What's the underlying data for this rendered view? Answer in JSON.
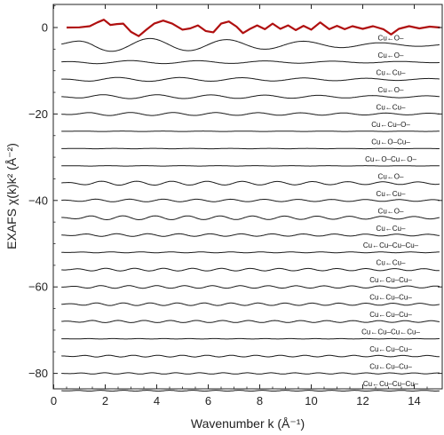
{
  "chart_data": {
    "type": "line",
    "xlabel": "Wavenumber k (Å⁻¹)",
    "ylabel": "EXAFS χ(k)k² (Å⁻²)",
    "xlim": [
      0,
      15
    ],
    "ylim": [
      -84,
      6
    ],
    "x_ticks": [
      0,
      2,
      4,
      6,
      8,
      10,
      12,
      14
    ],
    "y_ticks": [
      0,
      -20,
      -40,
      -60,
      -80
    ],
    "grid": false,
    "legend": "none",
    "colors": {
      "total": "#b01010",
      "paths": "#1a1a1a",
      "axes": "#222222"
    },
    "total_signal": {
      "offset": 0,
      "points": [
        [
          0.5,
          0
        ],
        [
          1.0,
          0.05
        ],
        [
          1.4,
          0.3
        ],
        [
          1.7,
          1.2
        ],
        [
          1.95,
          1.8
        ],
        [
          2.2,
          0.6
        ],
        [
          2.45,
          0.8
        ],
        [
          2.7,
          0.9
        ],
        [
          3.0,
          -1.0
        ],
        [
          3.3,
          -2.0
        ],
        [
          3.6,
          -0.5
        ],
        [
          3.9,
          0.9
        ],
        [
          4.25,
          1.6
        ],
        [
          4.6,
          0.9
        ],
        [
          5.0,
          -0.5
        ],
        [
          5.3,
          -0.2
        ],
        [
          5.6,
          0.5
        ],
        [
          5.9,
          -0.8
        ],
        [
          6.2,
          -1.1
        ],
        [
          6.5,
          0.9
        ],
        [
          6.8,
          1.4
        ],
        [
          7.1,
          0.2
        ],
        [
          7.35,
          -1.3
        ],
        [
          7.6,
          -0.4
        ],
        [
          7.9,
          0.5
        ],
        [
          8.2,
          -0.4
        ],
        [
          8.5,
          0.9
        ],
        [
          8.8,
          -0.3
        ],
        [
          9.1,
          0.5
        ],
        [
          9.4,
          -0.6
        ],
        [
          9.7,
          0.4
        ],
        [
          10.0,
          -0.5
        ],
        [
          10.35,
          1.2
        ],
        [
          10.7,
          -0.4
        ],
        [
          11.0,
          0.4
        ],
        [
          11.3,
          -0.4
        ],
        [
          11.6,
          0.3
        ],
        [
          12.0,
          -0.3
        ],
        [
          12.4,
          0.3
        ],
        [
          12.8,
          -0.4
        ],
        [
          13.1,
          -1.6
        ],
        [
          13.4,
          -0.3
        ],
        [
          13.8,
          0.3
        ],
        [
          14.2,
          -0.2
        ],
        [
          14.6,
          0.2
        ],
        [
          15.0,
          0
        ]
      ]
    },
    "paths": [
      {
        "label": "Cu←O–",
        "offset": -4,
        "amp": 1.5,
        "freq": 2.1,
        "decay": 0.1
      },
      {
        "label": "Cu←O–",
        "offset": -8,
        "amp": 0.35,
        "freq": 2.4,
        "decay": 0.06
      },
      {
        "label": "Cu←Cu–",
        "offset": -12,
        "amp": 0.45,
        "freq": 2.6,
        "decay": 0.05
      },
      {
        "label": "Cu←O–",
        "offset": -16,
        "amp": 0.45,
        "freq": 3.0,
        "decay": 0.05
      },
      {
        "label": "Cu←Cu–",
        "offset": -20,
        "amp": 0.35,
        "freq": 3.8,
        "decay": 0.04
      },
      {
        "label": "Cu←Cu–O–",
        "offset": -24,
        "amp": 0.05,
        "freq": 4.0,
        "decay": 0.02
      },
      {
        "label": "Cu←O–Cu–",
        "offset": -28,
        "amp": 0.05,
        "freq": 4.2,
        "decay": 0.02
      },
      {
        "label": "Cu←O–Cu←O–",
        "offset": -32,
        "amp": 0.05,
        "freq": 4.4,
        "decay": 0.02
      },
      {
        "label": "Cu←O–",
        "offset": -36,
        "amp": 0.45,
        "freq": 4.6,
        "decay": 0.03
      },
      {
        "label": "Cu←Cu–",
        "offset": -40,
        "amp": 0.3,
        "freq": 4.8,
        "decay": 0.03
      },
      {
        "label": "Cu←O–",
        "offset": -44,
        "amp": 0.45,
        "freq": 5.0,
        "decay": 0.03
      },
      {
        "label": "Cu←Cu–",
        "offset": -48,
        "amp": 0.3,
        "freq": 5.2,
        "decay": 0.03
      },
      {
        "label": "Cu←Cu–Cu–Cu–",
        "offset": -52,
        "amp": 0.1,
        "freq": 5.4,
        "decay": 0.01
      },
      {
        "label": "Cu←Cu–",
        "offset": -56,
        "amp": 0.3,
        "freq": 5.6,
        "decay": 0.02
      },
      {
        "label": "Cu←Cu–Cu–",
        "offset": -60,
        "amp": 0.3,
        "freq": 5.8,
        "decay": 0.02
      },
      {
        "label": "Cu←Cu–Cu–",
        "offset": -64,
        "amp": 0.3,
        "freq": 6.0,
        "decay": 0.02
      },
      {
        "label": "Cu←Cu–Cu–",
        "offset": -68,
        "amp": 0.25,
        "freq": 6.2,
        "decay": 0.02
      },
      {
        "label": "Cu←Cu–Cu←Cu–",
        "offset": -72,
        "amp": 0.05,
        "freq": 6.4,
        "decay": 0.01
      },
      {
        "label": "Cu←Cu–Cu–",
        "offset": -76,
        "amp": 0.2,
        "freq": 6.6,
        "decay": 0.02
      },
      {
        "label": "Cu←Cu–Cu–",
        "offset": -80,
        "amp": 0.15,
        "freq": 6.8,
        "decay": 0.02
      },
      {
        "label": "Cu←Cu–Cu–Cu–",
        "offset": -84,
        "amp": 0.1,
        "freq": 7.0,
        "decay": 0.01
      }
    ]
  }
}
